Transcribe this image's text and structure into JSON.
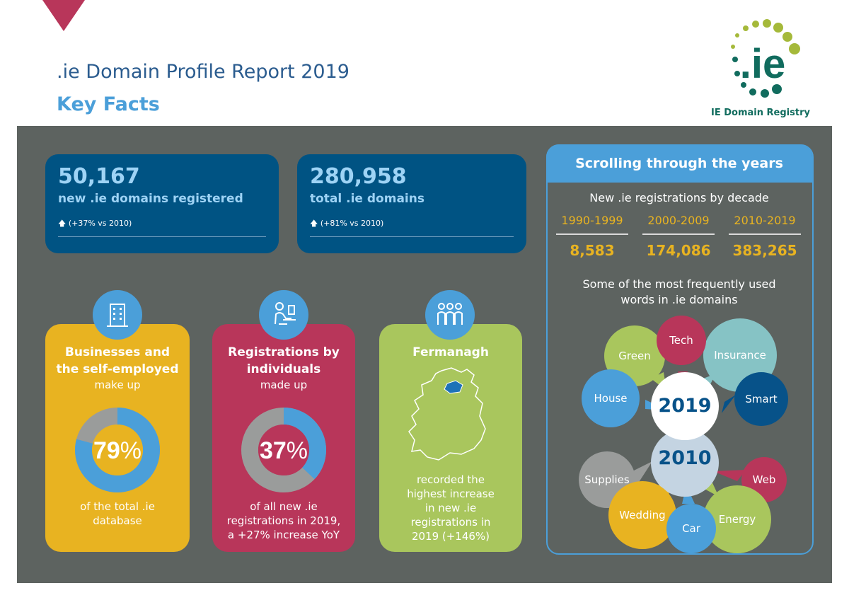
{
  "header": {
    "title": ".ie Domain Profile Report 2019",
    "subtitle": "Key Facts",
    "logo_mark": ".ie",
    "logo_text": "IE Domain Registry"
  },
  "stats": [
    {
      "value": "50,167",
      "label": "new .ie domains registered",
      "delta": "(+37% vs 2010)"
    },
    {
      "value": "280,958",
      "label": "total .ie domains",
      "delta": "(+81% vs 2010)"
    }
  ],
  "categories": [
    {
      "title_line1": "Businesses and",
      "title_line2": "the self-employed",
      "sub": "make up",
      "percent": "79",
      "percent_sign": "%",
      "fraction": 0.79,
      "foot_line1": "of the total .ie",
      "foot_line2": "database",
      "icon": "building-icon"
    },
    {
      "title_line1": "Registrations by",
      "title_line2": "individuals",
      "sub": "made up",
      "percent": "37",
      "percent_sign": "%",
      "fraction": 0.37,
      "foot_line1": "of all new .ie",
      "foot_line2": "registrations in 2019,",
      "foot_line3": "a +27% increase YoY",
      "icon": "person-at-desk-icon"
    },
    {
      "title_line1": "Fermanagh",
      "foot_line1": "recorded the",
      "foot_line2": "highest increase",
      "foot_line3": "in new .ie",
      "foot_line4": "registrations in",
      "foot_line5": "2019 (+146%)",
      "icon": "group-people-icon"
    }
  ],
  "years": {
    "heading": "Scrolling through the years",
    "sub": "New .ie registrations by decade",
    "decades": [
      {
        "label": "1990-1999",
        "value": "8,583"
      },
      {
        "label": "2000-2009",
        "value": "174,086"
      },
      {
        "label": "2010-2019",
        "value": "383,265"
      }
    ],
    "words_line1": "Some of the most frequently used",
    "words_line2": "words in .ie domains",
    "year_a": "2019",
    "year_b": "2010",
    "words_2019": [
      "Green",
      "Tech",
      "Insurance",
      "House",
      "Smart"
    ],
    "words_2010": [
      "Supplies",
      "Web",
      "Wedding",
      "Car",
      "Energy"
    ]
  },
  "colors": {
    "panel": "#5d6360",
    "stat_card": "#005383",
    "yellow": "#e8b321",
    "crimson": "#b8365a",
    "green": "#a9c65d",
    "blue": "#4b9fd9",
    "grey": "#9a9c9b",
    "teal": "#86c3c5",
    "dark_blue": "#075289"
  }
}
